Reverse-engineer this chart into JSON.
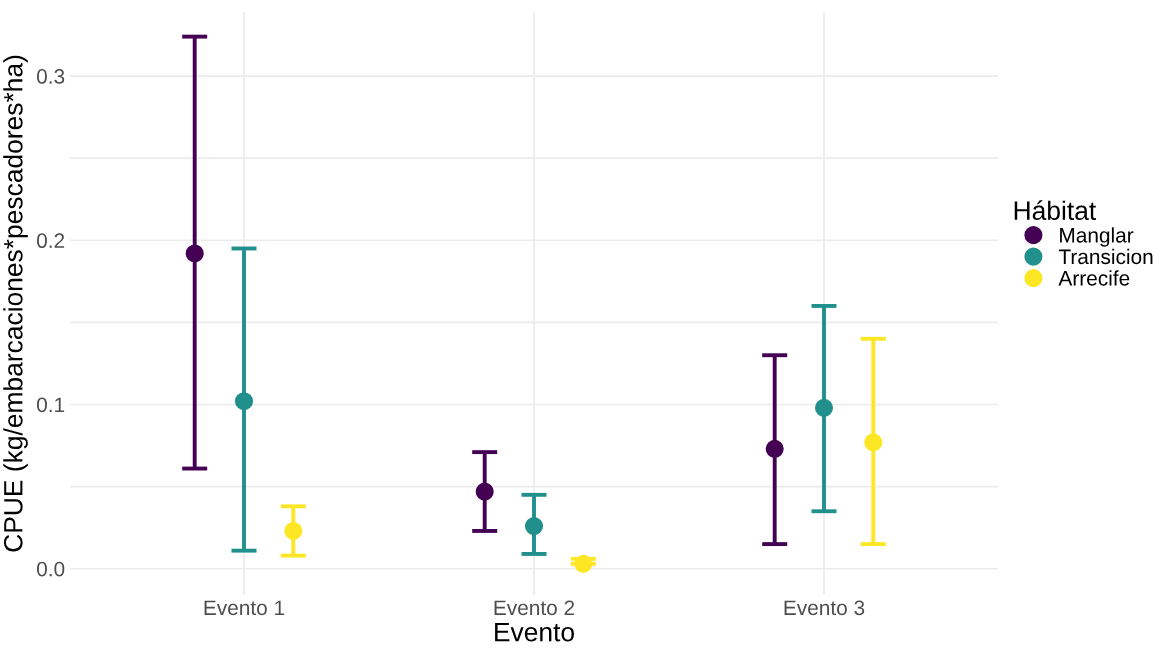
{
  "chart_data": {
    "type": "scatter",
    "xlabel": "Evento",
    "ylabel": "CPUE (kg/embarcaciones*pescadores*ha)",
    "legend_title": "Hábitat",
    "categories": [
      "Evento 1",
      "Evento 2",
      "Evento 3"
    ],
    "series": [
      {
        "name": "Manglar",
        "color": "#440154",
        "values": [
          0.192,
          0.047,
          0.073
        ],
        "errors": [
          [
            0.061,
            0.324
          ],
          [
            0.023,
            0.071
          ],
          [
            0.015,
            0.13
          ]
        ]
      },
      {
        "name": "Transicion",
        "color": "#21908c",
        "values": [
          0.102,
          0.026,
          0.098
        ],
        "errors": [
          [
            0.011,
            0.195
          ],
          [
            0.009,
            0.045
          ],
          [
            0.035,
            0.16
          ]
        ]
      },
      {
        "name": "Arrecife",
        "color": "#fde725",
        "values": [
          0.023,
          0.003,
          0.077
        ],
        "errors": [
          [
            0.008,
            0.038
          ],
          [
            0.003,
            0.006
          ],
          [
            0.015,
            0.14
          ]
        ]
      }
    ],
    "ylim": [
      -0.016,
      0.339
    ],
    "yticks": [
      {
        "value": 0,
        "label": "0.0"
      },
      {
        "value": 0.05,
        "label": null
      },
      {
        "value": 0.1,
        "label": "0.1"
      },
      {
        "value": 0.15,
        "label": null
      },
      {
        "value": 0.2,
        "label": "0.2"
      },
      {
        "value": 0.25,
        "label": null
      },
      {
        "value": 0.3,
        "label": "0.3"
      }
    ],
    "grid": true,
    "legend": "right",
    "marker": "circle"
  }
}
